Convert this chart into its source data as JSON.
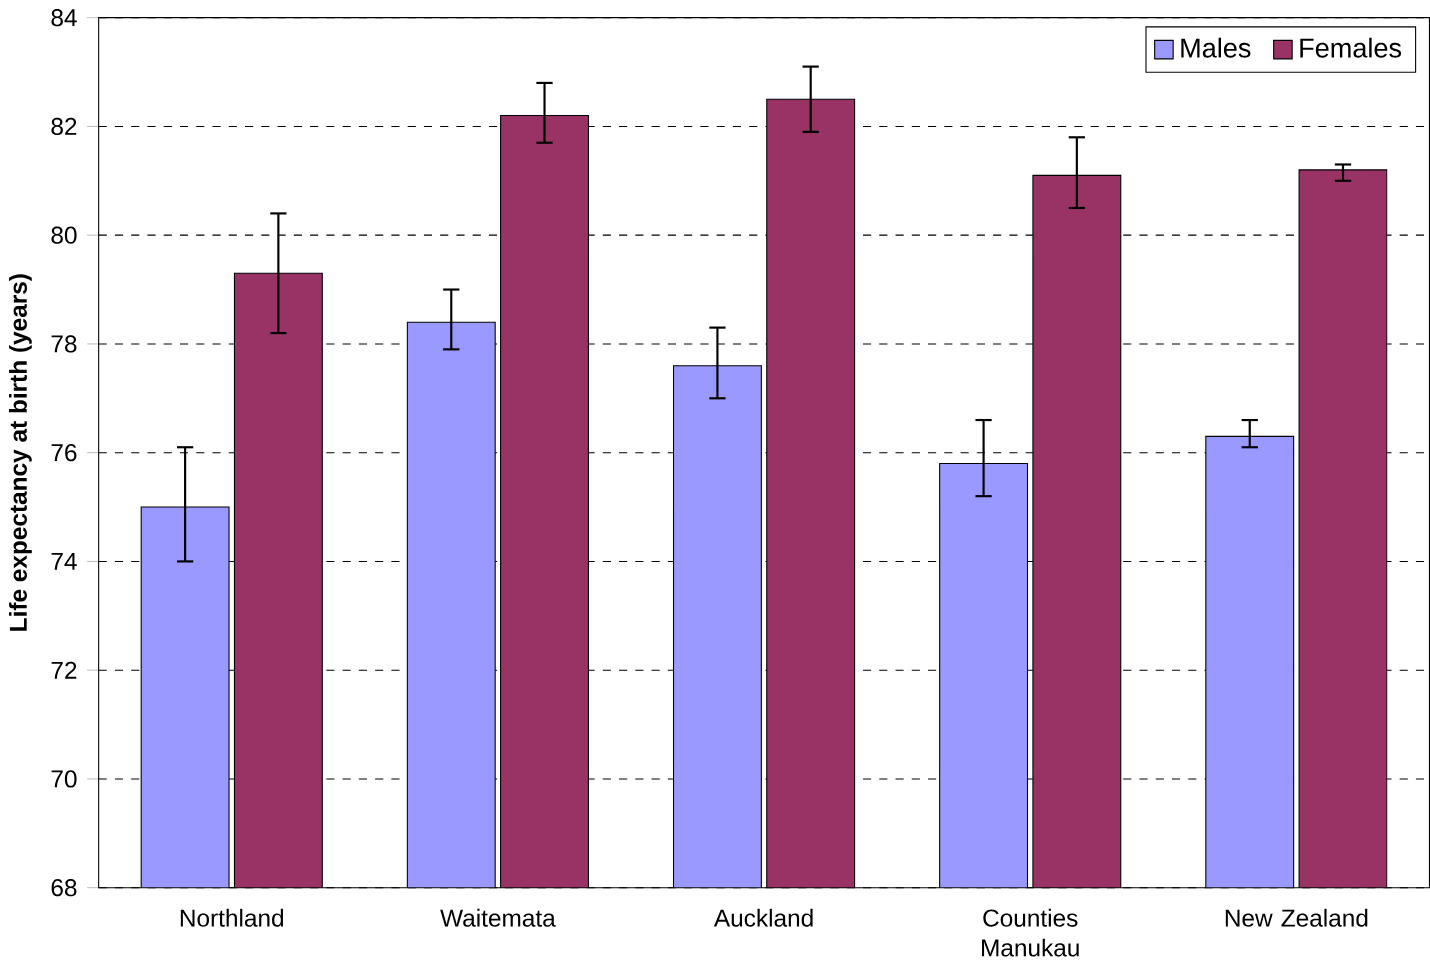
{
  "chart_data": {
    "type": "bar",
    "ylabel": "Life expectancy at birth (years)",
    "categories": [
      "Northland",
      "Waitemata",
      "Auckland",
      "Counties Manukau",
      "New Zealand"
    ],
    "series": [
      {
        "name": "Males",
        "color": "#9999ff",
        "values": [
          75.0,
          78.4,
          77.6,
          75.8,
          76.3
        ],
        "errors": [
          [
            74.0,
            76.1
          ],
          [
            77.9,
            79.0
          ],
          [
            77.0,
            78.3
          ],
          [
            75.2,
            76.6
          ],
          [
            76.1,
            76.6
          ]
        ]
      },
      {
        "name": "Females",
        "color": "#993366",
        "values": [
          79.3,
          82.2,
          82.5,
          81.1,
          81.2
        ],
        "errors": [
          [
            78.2,
            80.4
          ],
          [
            81.7,
            82.8
          ],
          [
            81.9,
            83.1
          ],
          [
            80.5,
            81.8
          ],
          [
            81.0,
            81.3
          ]
        ]
      }
    ],
    "ylim": [
      68,
      84
    ],
    "yticks": [
      68,
      70,
      72,
      74,
      76,
      78,
      80,
      82,
      84
    ],
    "grid": "y",
    "legend": "top right"
  }
}
